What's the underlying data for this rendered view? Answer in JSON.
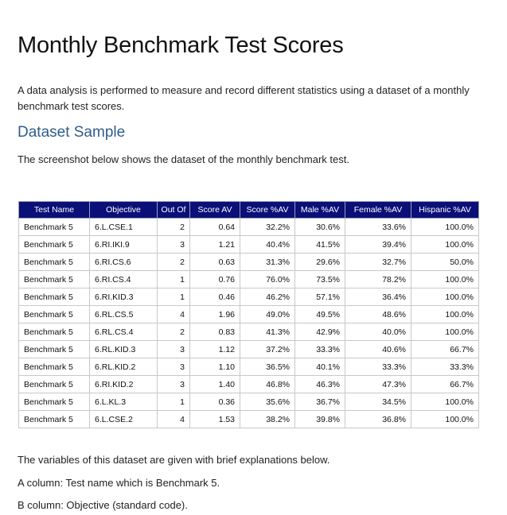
{
  "title": "Monthly Benchmark Test Scores",
  "intro": "A data analysis is performed to measure and record different statistics using a dataset of a monthly benchmark test scores.",
  "subheading": "Dataset Sample",
  "screenshot_note": "The screenshot below shows the dataset of the monthly benchmark test.",
  "table": {
    "headers": [
      "Test Name",
      "Objective",
      "Out Of",
      "Score AV",
      "Score %AV",
      "Male %AV",
      "Female %AV",
      "Hispanic %AV"
    ],
    "rows": [
      [
        "Benchmark 5",
        "6.L.CSE.1",
        "2",
        "0.64",
        "32.2%",
        "30.6%",
        "33.6%",
        "100.0%"
      ],
      [
        "Benchmark 5",
        "6.RI.IKI.9",
        "3",
        "1.21",
        "40.4%",
        "41.5%",
        "39.4%",
        "100.0%"
      ],
      [
        "Benchmark 5",
        "6.RI.CS.6",
        "2",
        "0.63",
        "31.3%",
        "29.6%",
        "32.7%",
        "50.0%"
      ],
      [
        "Benchmark 5",
        "6.RI.CS.4",
        "1",
        "0.76",
        "76.0%",
        "73.5%",
        "78.2%",
        "100.0%"
      ],
      [
        "Benchmark 5",
        "6.RI.KID.3",
        "1",
        "0.46",
        "46.2%",
        "57.1%",
        "36.4%",
        "100.0%"
      ],
      [
        "Benchmark 5",
        "6.RL.CS.5",
        "4",
        "1.96",
        "49.0%",
        "49.5%",
        "48.6%",
        "100.0%"
      ],
      [
        "Benchmark 5",
        "6.RL.CS.4",
        "2",
        "0.83",
        "41.3%",
        "42.9%",
        "40.0%",
        "100.0%"
      ],
      [
        "Benchmark 5",
        "6.RL.KID.3",
        "3",
        "1.12",
        "37.2%",
        "33.3%",
        "40.6%",
        "66.7%"
      ],
      [
        "Benchmark 5",
        "6.RL.KID.2",
        "3",
        "1.10",
        "36.5%",
        "40.1%",
        "33.3%",
        "33.3%"
      ],
      [
        "Benchmark 5",
        "6.RI.KID.2",
        "3",
        "1.40",
        "46.8%",
        "46.3%",
        "47.3%",
        "66.7%"
      ],
      [
        "Benchmark 5",
        "6.L.KL.3",
        "1",
        "0.36",
        "35.6%",
        "36.7%",
        "34.5%",
        "100.0%"
      ],
      [
        "Benchmark 5",
        "6.L.CSE.2",
        "4",
        "1.53",
        "38.2%",
        "39.8%",
        "36.8%",
        "100.0%"
      ]
    ],
    "header_color": "#0b0f78"
  },
  "variables_intro": "The variables of this dataset are given with brief explanations below.",
  "column_a": "A column: Test name which is Benchmark 5.",
  "column_b": "B column: Objective (standard code)."
}
